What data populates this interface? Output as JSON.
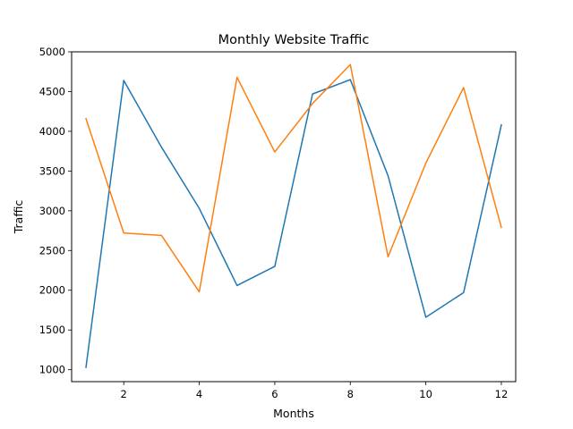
{
  "chart_data": {
    "type": "line",
    "title": "Monthly Website Traffic",
    "xlabel": "Months",
    "ylabel": "Traffic",
    "xlim": [
      0.62,
      12.38
    ],
    "ylim": [
      850,
      5000
    ],
    "xticks": [
      2,
      4,
      6,
      8,
      10,
      12
    ],
    "yticks": [
      1000,
      1500,
      2000,
      2500,
      3000,
      3500,
      4000,
      4500,
      5000
    ],
    "grid": false,
    "legend": "none",
    "x": [
      1,
      2,
      3,
      4,
      5,
      6,
      7,
      8,
      9,
      10,
      11,
      12
    ],
    "series": [
      {
        "color": "#1f77b4",
        "values": [
          1030,
          4640,
          3800,
          3030,
          2060,
          2300,
          4470,
          4650,
          3440,
          1660,
          1970,
          4080
        ]
      },
      {
        "color": "#ff7f0e",
        "values": [
          4160,
          2720,
          2690,
          1980,
          4680,
          3740,
          4350,
          4840,
          2420,
          3600,
          4550,
          2790
        ]
      }
    ]
  }
}
